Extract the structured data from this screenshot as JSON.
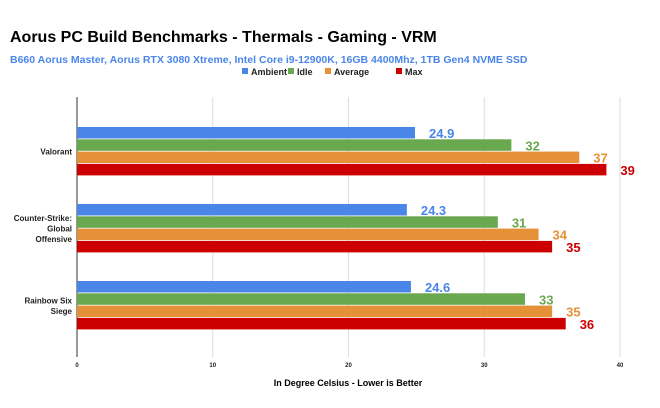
{
  "chart_data": {
    "type": "bar",
    "orientation": "horizontal",
    "title": "Aorus PC Build Benchmarks - Thermals - Gaming - VRM",
    "subtitle": "B660 Aorus Master, Aorus RTX 3080 Xtreme, Intel Core i9-12900K, 16GB 4400Mhz, 1TB Gen4 NVME SSD",
    "xlabel": "In Degree Celsius - Lower is Better",
    "ylabel": "",
    "xlim": [
      0,
      40
    ],
    "xticks": [
      0,
      10,
      20,
      30,
      40
    ],
    "grid": true,
    "legend_position": "top-center",
    "categories": [
      [
        "Valorant"
      ],
      [
        "Counter-Strike:",
        "Global",
        "Offensive"
      ],
      [
        "Rainbow Six",
        "Siege"
      ]
    ],
    "series": [
      {
        "name": "Ambient",
        "color": "#4a86e8",
        "values": [
          24.9,
          24.3,
          24.6
        ],
        "labels": [
          "24.9",
          "24.3",
          "24.6"
        ]
      },
      {
        "name": "Idle",
        "color": "#6aa84f",
        "values": [
          32,
          31,
          33
        ],
        "labels": [
          "32",
          "31",
          "33"
        ]
      },
      {
        "name": "Average",
        "color": "#e69138",
        "values": [
          37,
          34,
          35
        ],
        "labels": [
          "37",
          "34",
          "35"
        ]
      },
      {
        "name": "Max",
        "color": "#cc0000",
        "values": [
          39,
          35,
          36
        ],
        "labels": [
          "39",
          "35",
          "36"
        ]
      }
    ]
  }
}
